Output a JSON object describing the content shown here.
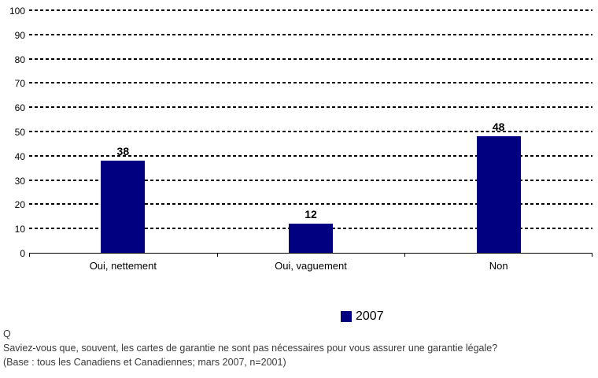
{
  "chart_data": {
    "type": "bar",
    "categories": [
      "Oui, nettement",
      "Oui, vaguement",
      "Non"
    ],
    "values": [
      38,
      12,
      48
    ],
    "series": [
      {
        "name": "2007",
        "values": [
          38,
          12,
          48
        ]
      }
    ],
    "title": "",
    "xlabel": "",
    "ylabel": "",
    "ylim": [
      0,
      100
    ],
    "yticks": [
      0,
      10,
      20,
      30,
      40,
      50,
      60,
      70,
      80,
      90,
      100
    ],
    "grid": "horizontal-dotted",
    "legend_position": "bottom-center",
    "bar_color": "#000080"
  },
  "legend": {
    "label": "2007",
    "swatch_color": "#000080"
  },
  "footer": {
    "q_label": "Q",
    "question": "Saviez-vous que, souvent, les cartes de garantie ne sont pas nécessaires pour vous assurer une garantie légale?",
    "base": "(Base : tous les Canadiens et Canadiennes; mars 2007, n=2001)"
  }
}
